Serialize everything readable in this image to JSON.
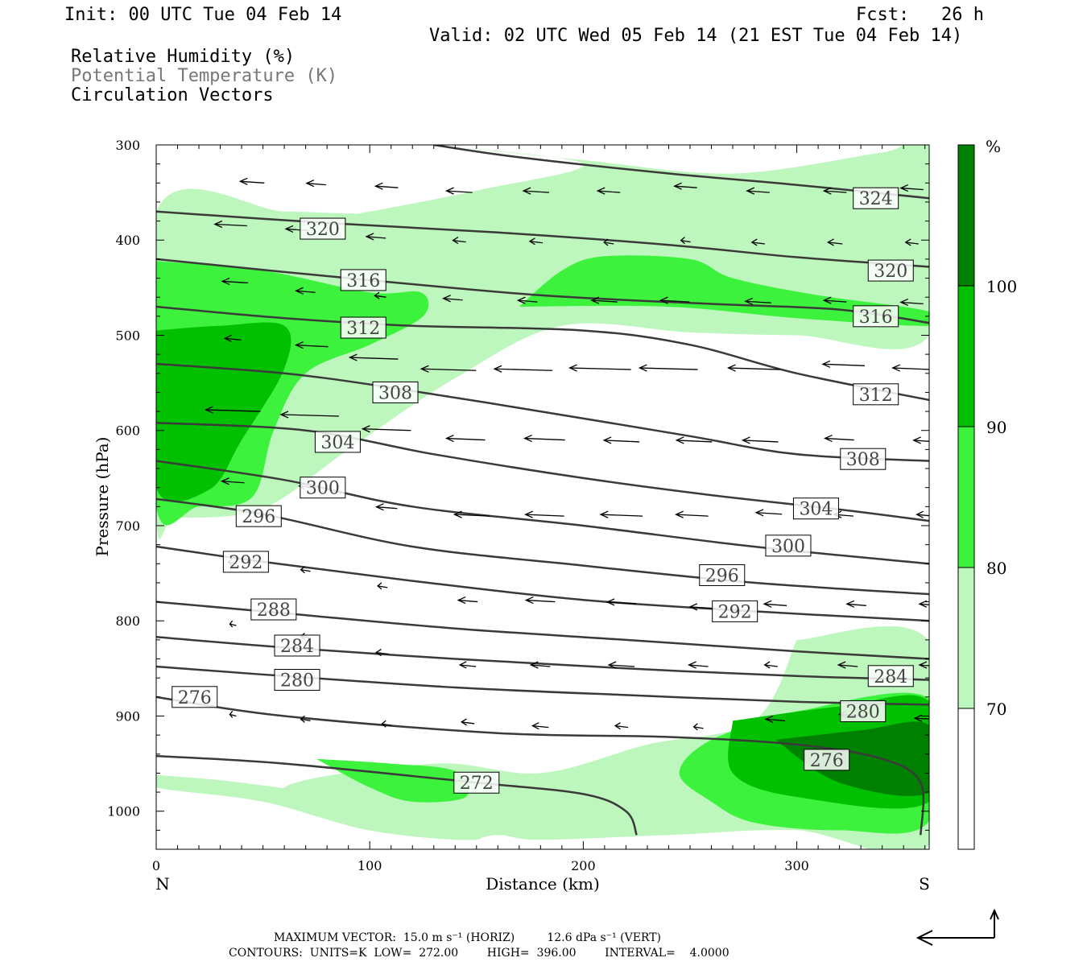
{
  "header": {
    "init": "Init: 00 UTC Tue 04 Feb 14",
    "fcst": "Fcst:   26 h",
    "valid": "Valid: 02 UTC Wed 05 Feb 14 (21 EST Tue 04 Feb 14)",
    "field1": "Relative Humidity (%)",
    "field2": "Potential Temperature (K)",
    "field3": "Circulation Vectors"
  },
  "footer": {
    "max_vector": "MAXIMUM VECTOR:  15.0 m s⁻¹ (HORIZ)         12.6 dPa s⁻¹ (VERT)",
    "contours": "CONTOURS:  UNITS=K  LOW=  272.00        HIGH=  396.00        INTERVAL=    4.0000"
  },
  "colors": {
    "rh70": "#bdf7bd",
    "rh80": "#3df23d",
    "rh90": "#00c000",
    "rh100": "#008000",
    "contour": "#3a3a3a"
  },
  "chart_data": {
    "type": "cross-section",
    "xlabel": "Distance (km)",
    "ylabel": "Pressure (hPa)",
    "xlim": [
      0,
      362
    ],
    "ylim": [
      1040,
      300
    ],
    "x_ticks": [
      "0",
      "100",
      "200",
      "300"
    ],
    "y_ticks": [
      "300",
      "400",
      "500",
      "600",
      "700",
      "800",
      "900",
      "1000"
    ],
    "left_end_label": "N",
    "right_end_label": "S",
    "colorbar": {
      "unit": "%",
      "levels": [
        "70",
        "80",
        "90",
        "100"
      ]
    },
    "theta_contours": [
      {
        "label": "324",
        "pts": [
          [
            130,
            300
          ],
          [
            170,
            313
          ],
          [
            240,
            330
          ],
          [
            300,
            342
          ],
          [
            362,
            356
          ]
        ],
        "lx": 337,
        "lp": 356
      },
      {
        "label": "320",
        "pts": [
          [
            0,
            370
          ],
          [
            80,
            382
          ],
          [
            160,
            392
          ],
          [
            240,
            405
          ],
          [
            300,
            418
          ],
          [
            362,
            428
          ]
        ],
        "lx": 78,
        "lp": 388
      },
      {
        "label": "320",
        "pts": [],
        "lx": 344,
        "lp": 432
      },
      {
        "label": "316",
        "pts": [
          [
            0,
            420
          ],
          [
            90,
            440
          ],
          [
            180,
            458
          ],
          [
            260,
            467
          ],
          [
            320,
            473
          ],
          [
            362,
            487
          ]
        ],
        "lx": 97,
        "lp": 442
      },
      {
        "label": "316",
        "pts": [],
        "lx": 337,
        "lp": 480
      },
      {
        "label": "312",
        "pts": [
          [
            0,
            470
          ],
          [
            60,
            482
          ],
          [
            120,
            490
          ],
          [
            200,
            495
          ],
          [
            250,
            510
          ],
          [
            300,
            540
          ],
          [
            362,
            568
          ]
        ],
        "lx": 97,
        "lp": 492
      },
      {
        "label": "312",
        "pts": [],
        "lx": 337,
        "lp": 562
      },
      {
        "label": "308",
        "pts": [
          [
            0,
            530
          ],
          [
            60,
            540
          ],
          [
            110,
            555
          ],
          [
            180,
            580
          ],
          [
            250,
            606
          ],
          [
            300,
            625
          ],
          [
            362,
            632
          ]
        ],
        "lx": 112,
        "lp": 560
      },
      {
        "label": "308",
        "pts": [],
        "lx": 331,
        "lp": 630
      },
      {
        "label": "304",
        "pts": [
          [
            0,
            592
          ],
          [
            70,
            600
          ],
          [
            130,
            625
          ],
          [
            200,
            650
          ],
          [
            260,
            668
          ],
          [
            320,
            683
          ],
          [
            362,
            695
          ]
        ],
        "lx": 85,
        "lp": 612
      },
      {
        "label": "304",
        "pts": [],
        "lx": 309,
        "lp": 682
      },
      {
        "label": "300",
        "pts": [
          [
            0,
            632
          ],
          [
            60,
            652
          ],
          [
            120,
            680
          ],
          [
            200,
            700
          ],
          [
            280,
            722
          ],
          [
            362,
            740
          ]
        ],
        "lx": 78,
        "lp": 660
      },
      {
        "label": "300",
        "pts": [],
        "lx": 296,
        "lp": 721
      },
      {
        "label": "296",
        "pts": [
          [
            0,
            672
          ],
          [
            50,
            688
          ],
          [
            120,
            722
          ],
          [
            200,
            742
          ],
          [
            280,
            760
          ],
          [
            362,
            772
          ]
        ],
        "lx": 48,
        "lp": 690
      },
      {
        "label": "296",
        "pts": [],
        "lx": 265,
        "lp": 752
      },
      {
        "label": "292",
        "pts": [
          [
            0,
            722
          ],
          [
            50,
            738
          ],
          [
            120,
            758
          ],
          [
            200,
            778
          ],
          [
            280,
            790
          ],
          [
            362,
            800
          ]
        ],
        "lx": 42,
        "lp": 738
      },
      {
        "label": "292",
        "pts": [],
        "lx": 271,
        "lp": 790
      },
      {
        "label": "288",
        "pts": [
          [
            0,
            780
          ],
          [
            60,
            792
          ],
          [
            140,
            808
          ],
          [
            220,
            820
          ],
          [
            300,
            832
          ],
          [
            362,
            840
          ]
        ],
        "lx": 55,
        "lp": 788
      },
      {
        "label": "284",
        "pts": [
          [
            0,
            817
          ],
          [
            60,
            828
          ],
          [
            140,
            840
          ],
          [
            220,
            850
          ],
          [
            300,
            858
          ],
          [
            362,
            862
          ]
        ],
        "lx": 66,
        "lp": 826
      },
      {
        "label": "284",
        "pts": [],
        "lx": 344,
        "lp": 858
      },
      {
        "label": "280",
        "pts": [
          [
            0,
            848
          ],
          [
            60,
            858
          ],
          [
            140,
            870
          ],
          [
            220,
            878
          ],
          [
            300,
            885
          ],
          [
            362,
            888
          ]
        ],
        "lx": 66,
        "lp": 862
      },
      {
        "label": "280",
        "pts": [],
        "lx": 331,
        "lp": 895
      },
      {
        "label": "276",
        "pts": [
          [
            0,
            880
          ],
          [
            60,
            900
          ],
          [
            160,
            918
          ],
          [
            240,
            922
          ],
          [
            300,
            930
          ],
          [
            340,
            945
          ],
          [
            358,
            970
          ],
          [
            358,
            1025
          ]
        ],
        "lx": 18,
        "lp": 880
      },
      {
        "label": "276",
        "pts": [],
        "lx": 314,
        "lp": 946
      },
      {
        "label": "272",
        "pts": [
          [
            0,
            942
          ],
          [
            60,
            950
          ],
          [
            150,
            970
          ],
          [
            200,
            982
          ],
          [
            220,
            1000
          ],
          [
            225,
            1025
          ]
        ],
        "lx": 150,
        "lp": 970
      }
    ],
    "rh_regions": [
      {
        "level": 70,
        "pts": [
          [
            130,
            300
          ],
          [
            200,
            316
          ],
          [
            270,
            330
          ],
          [
            340,
            308
          ],
          [
            362,
            303
          ],
          [
            362,
            500
          ],
          [
            300,
            500
          ],
          [
            250,
            497
          ],
          [
            190,
            490
          ],
          [
            140,
            545
          ],
          [
            90,
            620
          ],
          [
            50,
            682
          ],
          [
            10,
            692
          ],
          [
            0,
            690
          ],
          [
            0,
            370
          ],
          [
            60,
            370
          ],
          [
            90,
            372
          ],
          [
            100,
            370
          ],
          [
            150,
            348
          ],
          [
            200,
            320
          ]
        ]
      },
      {
        "level": 70,
        "pts": [
          [
            300,
            820
          ],
          [
            362,
            822
          ],
          [
            362,
            1035
          ],
          [
            300,
            1020
          ],
          [
            240,
            1025
          ],
          [
            180,
            1030
          ],
          [
            160,
            1025
          ],
          [
            140,
            1030
          ],
          [
            90,
            1015
          ],
          [
            60,
            975
          ],
          [
            130,
            950
          ],
          [
            180,
            960
          ],
          [
            230,
            930
          ],
          [
            280,
            905
          ]
        ]
      },
      {
        "level": 70,
        "pts": [
          [
            0,
            962
          ],
          [
            40,
            970
          ],
          [
            100,
            990
          ],
          [
            140,
            1010
          ],
          [
            150,
            1030
          ],
          [
            100,
            1020
          ],
          [
            50,
            990
          ],
          [
            0,
            975
          ]
        ]
      },
      {
        "level": 80,
        "pts": [
          [
            0,
            422
          ],
          [
            50,
            432
          ],
          [
            100,
            455
          ],
          [
            124,
            455
          ],
          [
            125,
            480
          ],
          [
            100,
            510
          ],
          [
            70,
            540
          ],
          [
            55,
            600
          ],
          [
            45,
            670
          ],
          [
            20,
            680
          ],
          [
            0,
            680
          ]
        ]
      },
      {
        "level": 80,
        "pts": [
          [
            170,
            470
          ],
          [
            190,
            432
          ],
          [
            210,
            417
          ],
          [
            250,
            420
          ],
          [
            270,
            440
          ],
          [
            310,
            458
          ],
          [
            362,
            475
          ],
          [
            362,
            490
          ],
          [
            300,
            482
          ],
          [
            240,
            470
          ]
        ]
      },
      {
        "level": 80,
        "pts": [
          [
            300,
            895
          ],
          [
            362,
            882
          ],
          [
            362,
            1010
          ],
          [
            320,
            1020
          ],
          [
            280,
            1012
          ],
          [
            260,
            990
          ],
          [
            245,
            960
          ],
          [
            260,
            925
          ]
        ]
      },
      {
        "level": 80,
        "pts": [
          [
            75,
            945
          ],
          [
            110,
            950
          ],
          [
            140,
            958
          ],
          [
            145,
            985
          ],
          [
            120,
            990
          ],
          [
            100,
            975
          ]
        ]
      },
      {
        "level": 90,
        "pts": [
          [
            0,
            495
          ],
          [
            30,
            490
          ],
          [
            60,
            490
          ],
          [
            60,
            535
          ],
          [
            40,
            610
          ],
          [
            25,
            662
          ],
          [
            0,
            660
          ]
        ]
      },
      {
        "level": 90,
        "pts": [
          [
            270,
            905
          ],
          [
            320,
            890
          ],
          [
            362,
            885
          ],
          [
            362,
            990
          ],
          [
            300,
            985
          ],
          [
            270,
            960
          ]
        ]
      },
      {
        "level": 100,
        "pts": [
          [
            290,
            925
          ],
          [
            330,
            915
          ],
          [
            362,
            910
          ],
          [
            362,
            980
          ],
          [
            320,
            970
          ]
        ]
      }
    ],
    "vectors": [
      [
        45,
        340,
        -15
      ],
      [
        75,
        342,
        -12
      ],
      [
        108,
        345,
        -14
      ],
      [
        142,
        350,
        -16
      ],
      [
        178,
        350,
        -16
      ],
      [
        212,
        350,
        -14
      ],
      [
        248,
        345,
        -14
      ],
      [
        282,
        350,
        -14
      ],
      [
        318,
        350,
        -14
      ],
      [
        354,
        347,
        -14
      ],
      [
        35,
        385,
        -20
      ],
      [
        66,
        390,
        -14
      ],
      [
        103,
        398,
        -12
      ],
      [
        142,
        402,
        -8
      ],
      [
        178,
        403,
        -8
      ],
      [
        212,
        404,
        -6
      ],
      [
        248,
        402,
        -6
      ],
      [
        282,
        404,
        -8
      ],
      [
        318,
        404,
        -9
      ],
      [
        354,
        404,
        -8
      ],
      [
        37,
        445,
        -16
      ],
      [
        70,
        455,
        -12
      ],
      [
        105,
        460,
        -7
      ],
      [
        139,
        463,
        -12
      ],
      [
        174,
        465,
        -12
      ],
      [
        210,
        465,
        -16
      ],
      [
        243,
        465,
        -18
      ],
      [
        282,
        466,
        -16
      ],
      [
        318,
        465,
        -14
      ],
      [
        354,
        467,
        -14
      ],
      [
        36,
        505,
        -10
      ],
      [
        73,
        512,
        -20
      ],
      [
        102,
        525,
        -30
      ],
      [
        137,
        537,
        -34
      ],
      [
        172,
        537,
        -36
      ],
      [
        208,
        536,
        -38
      ],
      [
        240,
        536,
        -36
      ],
      [
        280,
        536,
        -32
      ],
      [
        322,
        532,
        -26
      ],
      [
        354,
        536,
        -24
      ],
      [
        36,
        580,
        -34
      ],
      [
        72,
        585,
        -36
      ],
      [
        108,
        600,
        -30
      ],
      [
        145,
        610,
        -24
      ],
      [
        182,
        610,
        -25
      ],
      [
        218,
        612,
        -22
      ],
      [
        252,
        612,
        -22
      ],
      [
        283,
        612,
        -22
      ],
      [
        320,
        610,
        -18
      ],
      [
        360,
        612,
        -14
      ],
      [
        36,
        655,
        -14
      ],
      [
        70,
        660,
        -8
      ],
      [
        108,
        682,
        -13
      ],
      [
        148,
        690,
        -22
      ],
      [
        182,
        690,
        -24
      ],
      [
        218,
        690,
        -26
      ],
      [
        251,
        690,
        -20
      ],
      [
        287,
        688,
        -16
      ],
      [
        322,
        690,
        -12
      ],
      [
        360,
        690,
        -10
      ],
      [
        36,
        740,
        -6
      ],
      [
        70,
        748,
        -6
      ],
      [
        106,
        765,
        -6
      ],
      [
        146,
        780,
        -12
      ],
      [
        180,
        780,
        -18
      ],
      [
        218,
        782,
        -18
      ],
      [
        256,
        787,
        -16
      ],
      [
        290,
        784,
        -14
      ],
      [
        328,
        784,
        -12
      ],
      [
        362,
        784,
        -12
      ],
      [
        36,
        805,
        -4
      ],
      [
        70,
        818,
        -6
      ],
      [
        106,
        835,
        -8
      ],
      [
        146,
        848,
        -10
      ],
      [
        180,
        848,
        -12
      ],
      [
        218,
        848,
        -16
      ],
      [
        254,
        848,
        -12
      ],
      [
        288,
        848,
        -8
      ],
      [
        324,
        848,
        -12
      ],
      [
        362,
        848,
        -12
      ],
      [
        36,
        900,
        -4
      ],
      [
        70,
        905,
        -6
      ],
      [
        108,
        910,
        -6
      ],
      [
        146,
        908,
        -8
      ],
      [
        180,
        912,
        -10
      ],
      [
        218,
        912,
        -8
      ],
      [
        254,
        913,
        -6
      ],
      [
        290,
        905,
        -12
      ],
      [
        326,
        900,
        -16
      ],
      [
        362,
        904,
        -18
      ]
    ]
  }
}
